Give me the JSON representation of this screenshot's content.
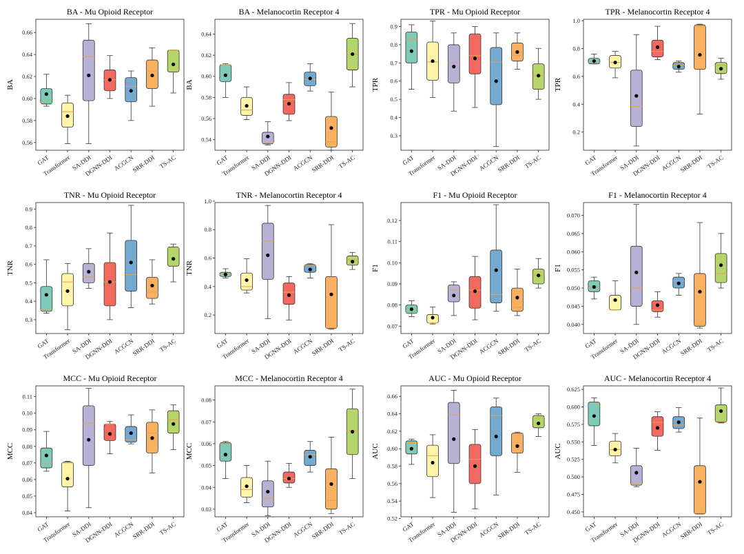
{
  "models": [
    "GAT",
    "Transformer",
    "SA-DDI",
    "DGNN-DDI",
    "ACGCN",
    "SRR-DDI",
    "TS-AC"
  ],
  "colors": [
    "#7fc9b8",
    "#fff4a8",
    "#b9b0d5",
    "#f26a5f",
    "#74a9d0",
    "#f9b060",
    "#b5d56a"
  ],
  "chart_data": [
    {
      "type": "box",
      "title": "BA - Mu Opioid Receptor",
      "ylabel": "BA",
      "ylim": [
        0.553,
        0.672
      ],
      "yticks": [
        0.56,
        0.58,
        0.6,
        0.62,
        0.64,
        0.66
      ],
      "series": [
        {
          "min": 0.593,
          "q1": 0.595,
          "median": 0.596,
          "q3": 0.609,
          "max": 0.622,
          "mean": 0.604
        },
        {
          "min": 0.559,
          "q1": 0.574,
          "median": 0.588,
          "q3": 0.596,
          "max": 0.603,
          "mean": 0.584
        },
        {
          "min": 0.559,
          "q1": 0.598,
          "median": 0.638,
          "q3": 0.653,
          "max": 0.668,
          "mean": 0.621
        },
        {
          "min": 0.6,
          "q1": 0.607,
          "median": 0.617,
          "q3": 0.626,
          "max": 0.639,
          "mean": 0.617
        },
        {
          "min": 0.58,
          "q1": 0.597,
          "median": 0.611,
          "q3": 0.619,
          "max": 0.625,
          "mean": 0.607
        },
        {
          "min": 0.593,
          "q1": 0.609,
          "median": 0.625,
          "q3": 0.635,
          "max": 0.646,
          "mean": 0.621
        },
        {
          "min": 0.605,
          "q1": 0.624,
          "median": 0.644,
          "q3": 0.644,
          "max": 0.644,
          "mean": 0.631
        }
      ]
    },
    {
      "type": "box",
      "title": "BA - Melanocortin Receptor 4",
      "ylabel": "BA",
      "ylim": [
        0.53,
        0.654
      ],
      "yticks": [
        0.54,
        0.56,
        0.58,
        0.6,
        0.62,
        0.64
      ],
      "series": [
        {
          "min": 0.58,
          "q1": 0.595,
          "median": 0.611,
          "q3": 0.611,
          "max": 0.612,
          "mean": 0.601
        },
        {
          "min": 0.559,
          "q1": 0.563,
          "median": 0.568,
          "q3": 0.58,
          "max": 0.59,
          "mean": 0.572
        },
        {
          "min": 0.535,
          "q1": 0.536,
          "median": 0.537,
          "q3": 0.547,
          "max": 0.557,
          "mean": 0.543
        },
        {
          "min": 0.558,
          "q1": 0.564,
          "median": 0.578,
          "q3": 0.583,
          "max": 0.594,
          "mean": 0.574
        },
        {
          "min": 0.586,
          "q1": 0.591,
          "median": 0.597,
          "q3": 0.604,
          "max": 0.612,
          "mean": 0.598
        },
        {
          "min": 0.53,
          "q1": 0.533,
          "median": 0.538,
          "q3": 0.562,
          "max": 0.585,
          "mean": 0.551
        },
        {
          "min": 0.59,
          "q1": 0.606,
          "median": 0.621,
          "q3": 0.636,
          "max": 0.65,
          "mean": 0.621
        }
      ]
    },
    {
      "type": "box",
      "title": "TPR - Mu Opioid Receptor",
      "ylabel": "TPR",
      "ylim": [
        0.22,
        0.94
      ],
      "yticks": [
        0.3,
        0.4,
        0.5,
        0.6,
        0.7,
        0.8,
        0.9
      ],
      "series": [
        {
          "min": 0.555,
          "q1": 0.7,
          "median": 0.83,
          "q3": 0.87,
          "max": 0.91,
          "mean": 0.765
        },
        {
          "min": 0.51,
          "q1": 0.605,
          "median": 0.705,
          "q3": 0.815,
          "max": 0.93,
          "mean": 0.71
        },
        {
          "min": 0.435,
          "q1": 0.59,
          "median": 0.7,
          "q3": 0.8,
          "max": 0.865,
          "mean": 0.68
        },
        {
          "min": 0.455,
          "q1": 0.64,
          "median": 0.74,
          "q3": 0.86,
          "max": 0.9,
          "mean": 0.725
        },
        {
          "min": 0.24,
          "q1": 0.47,
          "median": 0.705,
          "q3": 0.785,
          "max": 0.865,
          "mean": 0.6
        },
        {
          "min": 0.665,
          "q1": 0.71,
          "median": 0.74,
          "q3": 0.81,
          "max": 0.865,
          "mean": 0.76
        },
        {
          "min": 0.5,
          "q1": 0.555,
          "median": 0.63,
          "q3": 0.695,
          "max": 0.78,
          "mean": 0.63
        }
      ]
    },
    {
      "type": "box",
      "title": "TPR - Melanocortin Receptor 4",
      "ylabel": "TPR",
      "ylim": [
        0.07,
        1.01
      ],
      "yticks": [
        0.2,
        0.4,
        0.6,
        0.8,
        1.0
      ],
      "series": [
        {
          "min": 0.69,
          "q1": 0.69,
          "median": 0.7,
          "q3": 0.73,
          "max": 0.76,
          "mean": 0.71
        },
        {
          "min": 0.59,
          "q1": 0.66,
          "median": 0.7,
          "q3": 0.75,
          "max": 0.78,
          "mean": 0.7
        },
        {
          "min": 0.1,
          "q1": 0.24,
          "median": 0.385,
          "q3": 0.645,
          "max": 0.9,
          "mean": 0.46
        },
        {
          "min": 0.72,
          "q1": 0.74,
          "median": 0.78,
          "q3": 0.86,
          "max": 0.96,
          "mean": 0.81
        },
        {
          "min": 0.63,
          "q1": 0.65,
          "median": 0.68,
          "q3": 0.7,
          "max": 0.71,
          "mean": 0.67
        },
        {
          "min": 0.33,
          "q1": 0.65,
          "median": 0.96,
          "q3": 0.97,
          "max": 0.975,
          "mean": 0.755
        },
        {
          "min": 0.58,
          "q1": 0.62,
          "median": 0.68,
          "q3": 0.7,
          "max": 0.73,
          "mean": 0.655
        }
      ]
    },
    {
      "type": "box",
      "title": "TNR - Mu Opioid Receptor",
      "ylabel": "TNR",
      "ylim": [
        0.225,
        0.935
      ],
      "yticks": [
        0.3,
        0.4,
        0.5,
        0.6,
        0.7,
        0.8,
        0.9
      ],
      "series": [
        {
          "min": 0.335,
          "q1": 0.345,
          "median": 0.355,
          "q3": 0.48,
          "max": 0.625,
          "mean": 0.435
        },
        {
          "min": 0.245,
          "q1": 0.375,
          "median": 0.505,
          "q3": 0.55,
          "max": 0.605,
          "mean": 0.455
        },
        {
          "min": 0.47,
          "q1": 0.5,
          "median": 0.53,
          "q3": 0.605,
          "max": 0.685,
          "mean": 0.56
        },
        {
          "min": 0.3,
          "q1": 0.375,
          "median": 0.505,
          "q3": 0.61,
          "max": 0.77,
          "mean": 0.505
        },
        {
          "min": 0.365,
          "q1": 0.455,
          "median": 0.545,
          "q3": 0.73,
          "max": 0.92,
          "mean": 0.61
        },
        {
          "min": 0.385,
          "q1": 0.415,
          "median": 0.45,
          "q3": 0.53,
          "max": 0.625,
          "mean": 0.485
        },
        {
          "min": 0.505,
          "q1": 0.59,
          "median": 0.69,
          "q3": 0.695,
          "max": 0.71,
          "mean": 0.63
        }
      ]
    },
    {
      "type": "box",
      "title": "TNR - Melanocortin Receptor 4",
      "ylabel": "TNR",
      "ylim": [
        0.07,
        0.99
      ],
      "yticks": [
        0.2,
        0.4,
        0.6,
        0.8,
        1.0
      ],
      "series": [
        {
          "min": 0.46,
          "q1": 0.47,
          "median": 0.485,
          "q3": 0.5,
          "max": 0.525,
          "mean": 0.485
        },
        {
          "min": 0.355,
          "q1": 0.375,
          "median": 0.4,
          "q3": 0.495,
          "max": 0.595,
          "mean": 0.445
        },
        {
          "min": 0.175,
          "q1": 0.45,
          "median": 0.72,
          "q3": 0.845,
          "max": 0.97,
          "mean": 0.62
        },
        {
          "min": 0.165,
          "q1": 0.275,
          "median": 0.36,
          "q3": 0.425,
          "max": 0.47,
          "mean": 0.34
        },
        {
          "min": 0.46,
          "q1": 0.5,
          "median": 0.55,
          "q3": 0.555,
          "max": 0.56,
          "mean": 0.52
        },
        {
          "min": 0.1,
          "q1": 0.105,
          "median": 0.11,
          "q3": 0.47,
          "max": 0.835,
          "mean": 0.345
        },
        {
          "min": 0.52,
          "q1": 0.55,
          "median": 0.585,
          "q3": 0.615,
          "max": 0.64,
          "mean": 0.575
        }
      ]
    },
    {
      "type": "box",
      "title": "F1 - Mu Opioid Receptor",
      "ylabel": "F1",
      "ylim": [
        0.0665,
        0.1285
      ],
      "yticks": [
        0.07,
        0.08,
        0.09,
        0.1,
        0.11,
        0.12
      ],
      "series": [
        {
          "min": 0.0745,
          "q1": 0.076,
          "median": 0.0765,
          "q3": 0.08,
          "max": 0.082,
          "mean": 0.078
        },
        {
          "min": 0.071,
          "q1": 0.0715,
          "median": 0.0715,
          "q3": 0.0755,
          "max": 0.079,
          "mean": 0.074
        },
        {
          "min": 0.075,
          "q1": 0.0815,
          "median": 0.087,
          "q3": 0.0895,
          "max": 0.091,
          "mean": 0.0845
        },
        {
          "min": 0.073,
          "q1": 0.0785,
          "median": 0.087,
          "q3": 0.0935,
          "max": 0.103,
          "mean": 0.0865
        },
        {
          "min": 0.077,
          "q1": 0.081,
          "median": 0.085,
          "q3": 0.106,
          "max": 0.1275,
          "mean": 0.0965
        },
        {
          "min": 0.075,
          "q1": 0.077,
          "median": 0.079,
          "q3": 0.088,
          "max": 0.097,
          "mean": 0.0835
        },
        {
          "min": 0.088,
          "q1": 0.09,
          "median": 0.094,
          "q3": 0.097,
          "max": 0.102,
          "mean": 0.094
        }
      ]
    },
    {
      "type": "box",
      "title": "F1 - Melanocortin Receptor 4",
      "ylabel": "F1",
      "ylim": [
        0.0375,
        0.0735
      ],
      "yticks": [
        0.04,
        0.045,
        0.05,
        0.055,
        0.06,
        0.065,
        0.07
      ],
      "series": [
        {
          "min": 0.047,
          "q1": 0.049,
          "median": 0.05,
          "q3": 0.052,
          "max": 0.053,
          "mean": 0.0503
        },
        {
          "min": 0.044,
          "q1": 0.044,
          "median": 0.044,
          "q3": 0.048,
          "max": 0.052,
          "mean": 0.0467
        },
        {
          "min": 0.04,
          "q1": 0.045,
          "median": 0.05,
          "q3": 0.0615,
          "max": 0.073,
          "mean": 0.0543
        },
        {
          "min": 0.042,
          "q1": 0.0435,
          "median": 0.044,
          "q3": 0.0465,
          "max": 0.049,
          "mean": 0.0453
        },
        {
          "min": 0.048,
          "q1": 0.05,
          "median": 0.052,
          "q3": 0.053,
          "max": 0.054,
          "mean": 0.0513
        },
        {
          "min": 0.039,
          "q1": 0.0395,
          "median": 0.04,
          "q3": 0.054,
          "max": 0.068,
          "mean": 0.049
        },
        {
          "min": 0.05,
          "q1": 0.0515,
          "median": 0.054,
          "q3": 0.0595,
          "max": 0.065,
          "mean": 0.0563
        }
      ]
    },
    {
      "type": "box",
      "title": "MCC - Mu Opioid Receptor",
      "ylabel": "MCC",
      "ylim": [
        0.0375,
        0.1165
      ],
      "yticks": [
        0.04,
        0.05,
        0.06,
        0.07,
        0.08,
        0.09,
        0.1,
        0.11
      ],
      "series": [
        {
          "min": 0.065,
          "q1": 0.067,
          "median": 0.07,
          "q3": 0.079,
          "max": 0.089,
          "mean": 0.0745
        },
        {
          "min": 0.041,
          "q1": 0.0555,
          "median": 0.07,
          "q3": 0.0705,
          "max": 0.071,
          "mean": 0.0605
        },
        {
          "min": 0.043,
          "q1": 0.0685,
          "median": 0.094,
          "q3": 0.1045,
          "max": 0.115,
          "mean": 0.084
        },
        {
          "min": 0.0755,
          "q1": 0.0835,
          "median": 0.0935,
          "q3": 0.0935,
          "max": 0.095,
          "mean": 0.0875
        },
        {
          "min": 0.0815,
          "q1": 0.0825,
          "median": 0.084,
          "q3": 0.092,
          "max": 0.099,
          "mean": 0.088
        },
        {
          "min": 0.064,
          "q1": 0.076,
          "median": 0.088,
          "q3": 0.0945,
          "max": 0.102,
          "mean": 0.085
        },
        {
          "min": 0.078,
          "q1": 0.088,
          "median": 0.096,
          "q3": 0.1015,
          "max": 0.105,
          "mean": 0.0935
        }
      ]
    },
    {
      "type": "box",
      "title": "MCC - Melanocortin Receptor 4",
      "ylabel": "MCC",
      "ylim": [
        0.0265,
        0.0865
      ],
      "yticks": [
        0.03,
        0.04,
        0.05,
        0.06,
        0.07,
        0.08
      ],
      "series": [
        {
          "min": 0.044,
          "q1": 0.052,
          "median": 0.06,
          "q3": 0.0605,
          "max": 0.061,
          "mean": 0.055
        },
        {
          "min": 0.033,
          "q1": 0.0355,
          "median": 0.039,
          "q3": 0.0445,
          "max": 0.05,
          "mean": 0.0405
        },
        {
          "min": 0.027,
          "q1": 0.031,
          "median": 0.035,
          "q3": 0.043,
          "max": 0.052,
          "mean": 0.038
        },
        {
          "min": 0.04,
          "q1": 0.042,
          "median": 0.044,
          "q3": 0.047,
          "max": 0.051,
          "mean": 0.044
        },
        {
          "min": 0.047,
          "q1": 0.05,
          "median": 0.055,
          "q3": 0.057,
          "max": 0.061,
          "mean": 0.054
        },
        {
          "min": 0.028,
          "q1": 0.03,
          "median": 0.034,
          "q3": 0.0485,
          "max": 0.063,
          "mean": 0.0415
        },
        {
          "min": 0.044,
          "q1": 0.055,
          "median": 0.066,
          "q3": 0.076,
          "max": 0.085,
          "mean": 0.0655
        }
      ]
    },
    {
      "type": "box",
      "title": "AUC - Mu Opioid Receptor",
      "ylabel": "AUC",
      "ylim": [
        0.522,
        0.672
      ],
      "yticks": [
        0.52,
        0.54,
        0.56,
        0.58,
        0.6,
        0.62,
        0.64,
        0.66
      ],
      "series": [
        {
          "min": 0.582,
          "q1": 0.594,
          "median": 0.607,
          "q3": 0.609,
          "max": 0.611,
          "mean": 0.6
        },
        {
          "min": 0.544,
          "q1": 0.568,
          "median": 0.592,
          "q3": 0.604,
          "max": 0.616,
          "mean": 0.584
        },
        {
          "min": 0.527,
          "q1": 0.583,
          "median": 0.639,
          "q3": 0.653,
          "max": 0.667,
          "mean": 0.611
        },
        {
          "min": 0.531,
          "q1": 0.56,
          "median": 0.588,
          "q3": 0.605,
          "max": 0.622,
          "mean": 0.58
        },
        {
          "min": 0.547,
          "q1": 0.592,
          "median": 0.638,
          "q3": 0.648,
          "max": 0.658,
          "mean": 0.614
        },
        {
          "min": 0.573,
          "q1": 0.595,
          "median": 0.616,
          "q3": 0.618,
          "max": 0.619,
          "mean": 0.603
        },
        {
          "min": 0.614,
          "q1": 0.624,
          "median": 0.635,
          "q3": 0.638,
          "max": 0.64,
          "mean": 0.629
        }
      ]
    },
    {
      "type": "box",
      "title": "AUC - Melanocortin Receptor 4",
      "ylabel": "AUC",
      "ylim": [
        0.443,
        0.63
      ],
      "yticks": [
        0.45,
        0.475,
        0.5,
        0.525,
        0.55,
        0.575,
        0.6,
        0.625
      ],
      "series": [
        {
          "min": 0.545,
          "q1": 0.573,
          "median": 0.601,
          "q3": 0.607,
          "max": 0.613,
          "mean": 0.587
        },
        {
          "min": 0.52,
          "q1": 0.53,
          "median": 0.539,
          "q3": 0.551,
          "max": 0.562,
          "mean": 0.539
        },
        {
          "min": 0.486,
          "q1": 0.488,
          "median": 0.49,
          "q3": 0.516,
          "max": 0.541,
          "mean": 0.506
        },
        {
          "min": 0.538,
          "q1": 0.558,
          "median": 0.578,
          "q3": 0.586,
          "max": 0.593,
          "mean": 0.57
        },
        {
          "min": 0.564,
          "q1": 0.569,
          "median": 0.574,
          "q3": 0.586,
          "max": 0.599,
          "mean": 0.578
        },
        {
          "min": 0.447,
          "q1": 0.447,
          "median": 0.448,
          "q3": 0.516,
          "max": 0.584,
          "mean": 0.493
        },
        {
          "min": 0.577,
          "q1": 0.578,
          "median": 0.579,
          "q3": 0.603,
          "max": 0.627,
          "mean": 0.594
        }
      ]
    }
  ]
}
